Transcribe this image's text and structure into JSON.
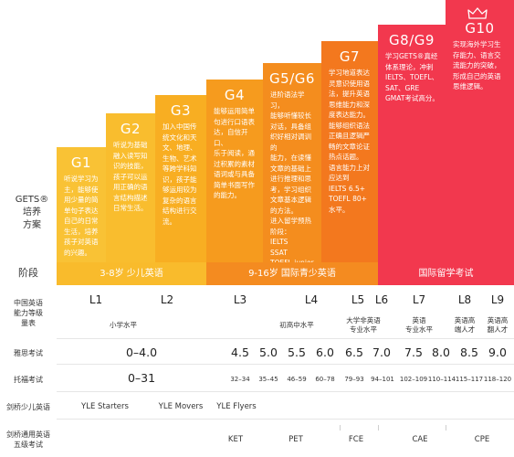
{
  "gets_label": [
    "GETS®",
    "培养",
    "方案"
  ],
  "grades": [
    {
      "title": "G1",
      "lines": [
        "听说学习为",
        "主，能够使",
        "用少量的简",
        "单句子表达",
        "自己的日常",
        "生活，培养",
        "孩子对英语",
        "的兴趣。"
      ]
    },
    {
      "title": "G2",
      "lines": [
        "听说为基础",
        "融入读写知",
        "识的技能，",
        "孩子可以运",
        "用正确的语",
        "言结构描述",
        "日常生活。"
      ]
    },
    {
      "title": "G3",
      "lines": [
        "加入中国传",
        "统文化和天",
        "文、地理、",
        "生物、艺术",
        "等跨学科知",
        "识，孩子能",
        "够运用较为",
        "复杂的语言",
        "结构进行交",
        "流。"
      ]
    },
    {
      "title": "G4",
      "lines": [
        "能够运用简单",
        "句进行口语表",
        "达，自信开口、",
        "乐于阅读，通",
        "过积累的素材",
        "语词或与具备",
        "简单书面写作",
        "的能力。"
      ]
    },
    {
      "title": "G5/G6",
      "lines": [
        "进阶语法学习，",
        "能够听懂较长",
        "对话，具备组",
        "织好相对调训的",
        "能力，在读懂",
        "文章的基础上",
        "进行推理和思",
        "考，学习组织",
        "文章基本逻辑",
        "的方法。",
        "进入留学预热",
        "阶段：",
        "IELTS",
        "SSAT",
        "TOEFL-junior"
      ]
    },
    {
      "title": "G7",
      "lines": [
        "学习地道表达",
        "灵意识使用语",
        "法，提升英语",
        "思维能力和深",
        "度表达能力。",
        "能够组织语法",
        "正确且逻辑严",
        "畅的文章论证",
        "热点话题。",
        "语言能力上对",
        "应达到",
        "IELTS 6.5+",
        "TOEFL 80+",
        "水平。"
      ]
    },
    {
      "title": "G8/G9",
      "lines": [
        "学习GETS®真经",
        "体系理论，冲刺",
        "IELTS、TOEFL、",
        "SAT、GRE",
        "GMAT考试高分。"
      ]
    },
    {
      "title": "G10",
      "lines": [
        "实现海外学习生",
        "存能力、语言交",
        "流能力的突破，",
        "形成自己的英语",
        "思维逻辑。"
      ]
    }
  ],
  "stage_label": "阶段",
  "stages": [
    "3-8岁 少儿英语",
    "9-16岁 国际青少英语",
    "国际留学考试"
  ],
  "cefr_label": [
    "中国英语",
    "能力等级",
    "量表"
  ],
  "levels": [
    "L1",
    "L2",
    "L3",
    "L4",
    "L5",
    "L6",
    "L7",
    "L8",
    "L9"
  ],
  "level_descs": {
    "primary": "小学水平",
    "junior": "初高中水平",
    "university": [
      "大学非英语",
      "专业水平"
    ],
    "major": [
      "英语",
      "专业水平"
    ],
    "translator": [
      "英语高",
      "端人才"
    ],
    "top": [
      "英语高",
      "翻人才"
    ]
  },
  "ielts_label": "雅思考试",
  "ielts": [
    "0–4.0",
    "4.5",
    "5.0",
    "5.5",
    "6.0",
    "6.5",
    "7.0",
    "7.5",
    "8.0",
    "8.5",
    "9.0"
  ],
  "toefl_label": "托福考试",
  "toefl": [
    "0–31",
    "32–34",
    "35–45",
    "46–59",
    "60–78",
    "79–93",
    "94–101",
    "102–109",
    "110–114",
    "115–117",
    "118–120"
  ],
  "yle_label": "剑桥少儿英语",
  "yle": [
    "YLE Starters",
    "YLE Movers",
    "YLE Flyers"
  ],
  "main_label": [
    "剑桥通用英语",
    "五级考试"
  ],
  "main_suite": [
    "KET",
    "PET",
    "FCE",
    "CAE",
    "CPE"
  ],
  "colors": {
    "yellow": "#f9bb2c",
    "orange": "#f48b20",
    "red": "#f2384e"
  }
}
